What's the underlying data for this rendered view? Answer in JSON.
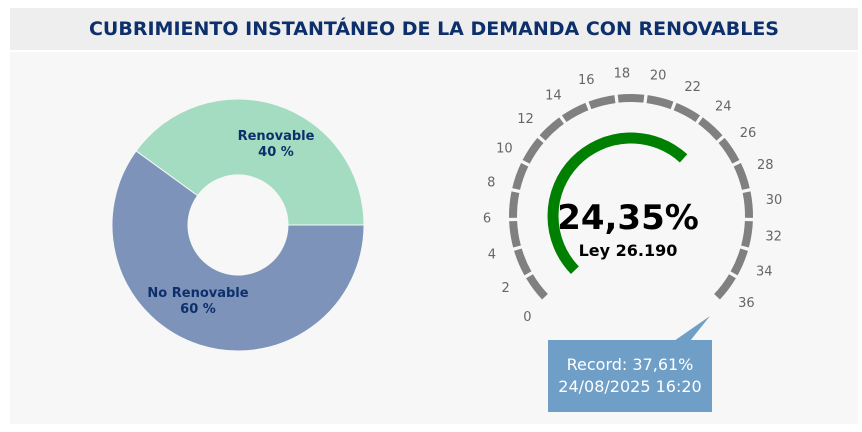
{
  "header": {
    "title": "CUBRIMIENTO INSTANTÁNEO DE LA DEMANDA CON RENOVABLES"
  },
  "colors": {
    "renovable": "#a3dcc0",
    "no_renovable": "#7d93b9",
    "gauge_value": "#008000",
    "gauge_ticks": "#808080",
    "title": "#0d2f6b",
    "callout_bg": "#6f9fc7"
  },
  "chart_data": [
    {
      "type": "pie",
      "subtype": "donut",
      "slices": [
        {
          "label": "Renovable",
          "value": 40,
          "value_label": "40 %"
        },
        {
          "label": "No Renovable",
          "value": 60,
          "value_label": "60 %"
        }
      ]
    },
    {
      "type": "gauge",
      "value": 24.35,
      "value_label": "24,35%",
      "sub_label": "Ley 26.190",
      "min": 0,
      "max": 37,
      "tick_labels": [
        "0",
        "2",
        "4",
        "6",
        "8",
        "10",
        "12",
        "14",
        "16",
        "18",
        "20",
        "22",
        "24",
        "26",
        "28",
        "30",
        "32",
        "34",
        "36"
      ],
      "record": {
        "line1": "Record: 37,61%",
        "line2": "24/08/2025 16:20"
      }
    }
  ]
}
